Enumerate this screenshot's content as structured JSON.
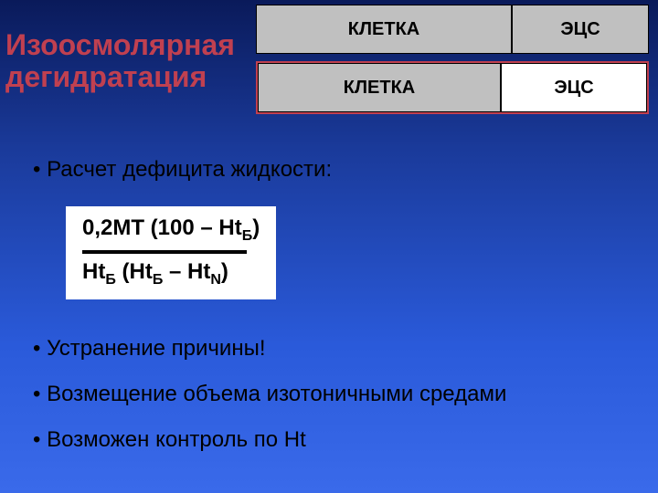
{
  "title_line1": "Изоосмолярная",
  "title_line2": "дегидратация",
  "diagram": {
    "row1_left": "КЛЕТКА",
    "row1_right": "ЭЦС",
    "row2_left": "КЛЕТКА",
    "row2_right": "ЭЦС"
  },
  "bullets": {
    "b1": "• Расчет дефицита жидкости:",
    "b2": "• Устранение причины!",
    "b3": "• Возмещение объема изотоничными средами",
    "b4": "• Возможен контроль по Ht"
  },
  "formula": {
    "num_prefix": "0,2МТ (100 – Ht",
    "num_sub": "Б",
    "num_suffix": ")",
    "den_p1": "Ht",
    "den_s1": "Б",
    "den_p2": " (Ht",
    "den_s2": "Б",
    "den_p3": " – Ht",
    "den_s3": "N",
    "den_p4": ")"
  },
  "colors": {
    "title_color": "#c04050",
    "box_gray": "#c0c0c0",
    "box_border_red": "#c04050",
    "bg_top": "#0a1a5a",
    "bg_bottom": "#3a6aea"
  }
}
